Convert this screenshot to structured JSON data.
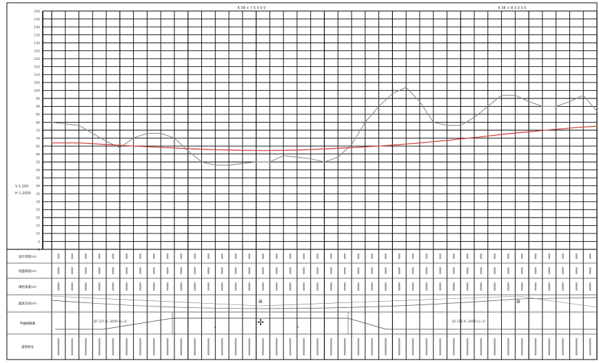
{
  "header": {
    "station_left": "K 38 + 7 5 0 0 0",
    "station_right": "K 38 + 8 3 0 0 0"
  },
  "vertical_scale": {
    "label_lines": [
      "V 1:200",
      "H 1:2000"
    ]
  },
  "y_axis": {
    "ticks": [
      "0",
      "5",
      "10",
      "15",
      "20",
      "25",
      "30",
      "35",
      "40",
      "45",
      "50",
      "55",
      "60",
      "65",
      "70",
      "75",
      "80",
      "85",
      "90",
      "95",
      "100",
      "105",
      "110",
      "115",
      "120",
      "125",
      "130",
      "135",
      "140",
      "145",
      "150"
    ]
  },
  "table": {
    "row_labels": [
      "设计高程(m)",
      "地面高程(m)",
      "填挖高度(m)",
      "超高方式(m)",
      "平曲线要素",
      "里程桩号"
    ],
    "curve_labels": {
      "left": "JD 127 R=3000 Ls=0",
      "right": "JD 128 R=2000 Ls=0",
      "mid_a": "a",
      "mid_b": "a"
    }
  },
  "chart_data": {
    "type": "line",
    "xlabel": "",
    "ylabel": "",
    "ylim": [
      0,
      150
    ],
    "x": [
      0,
      1,
      2,
      3,
      4,
      5,
      6,
      7,
      8,
      9,
      10,
      11,
      12,
      13,
      14,
      15,
      16,
      17,
      18,
      19,
      20,
      21,
      22,
      23,
      24,
      25,
      26,
      27,
      28,
      29,
      30,
      31,
      32,
      33,
      34,
      35,
      36,
      37,
      38,
      39,
      40
    ],
    "series": [
      {
        "color": "#8a8a8a",
        "values": [
          80,
          79,
          78,
          73,
          68,
          64,
          70,
          73,
          73,
          70,
          62,
          55,
          53,
          53,
          54,
          55,
          55,
          59,
          58,
          57,
          55,
          58,
          66,
          80,
          90,
          98,
          102,
          93,
          80,
          78,
          78,
          83,
          90,
          97,
          97,
          93,
          90,
          90,
          93,
          97,
          87
        ]
      },
      {
        "color": "#d0443c",
        "values": [
          67,
          67,
          67,
          66.5,
          66,
          65.5,
          65,
          64.6,
          64.2,
          63.8,
          63.4,
          63,
          62.7,
          62.5,
          62.3,
          62.2,
          62.2,
          62.3,
          62.5,
          62.8,
          63.2,
          63.6,
          64,
          64.5,
          65,
          65.6,
          66.3,
          67,
          67.8,
          68.6,
          69.5,
          70.4,
          71.3,
          72.3,
          73.2,
          74,
          74.8,
          75.6,
          76.3,
          77,
          77.5
        ]
      }
    ],
    "grid": true
  }
}
